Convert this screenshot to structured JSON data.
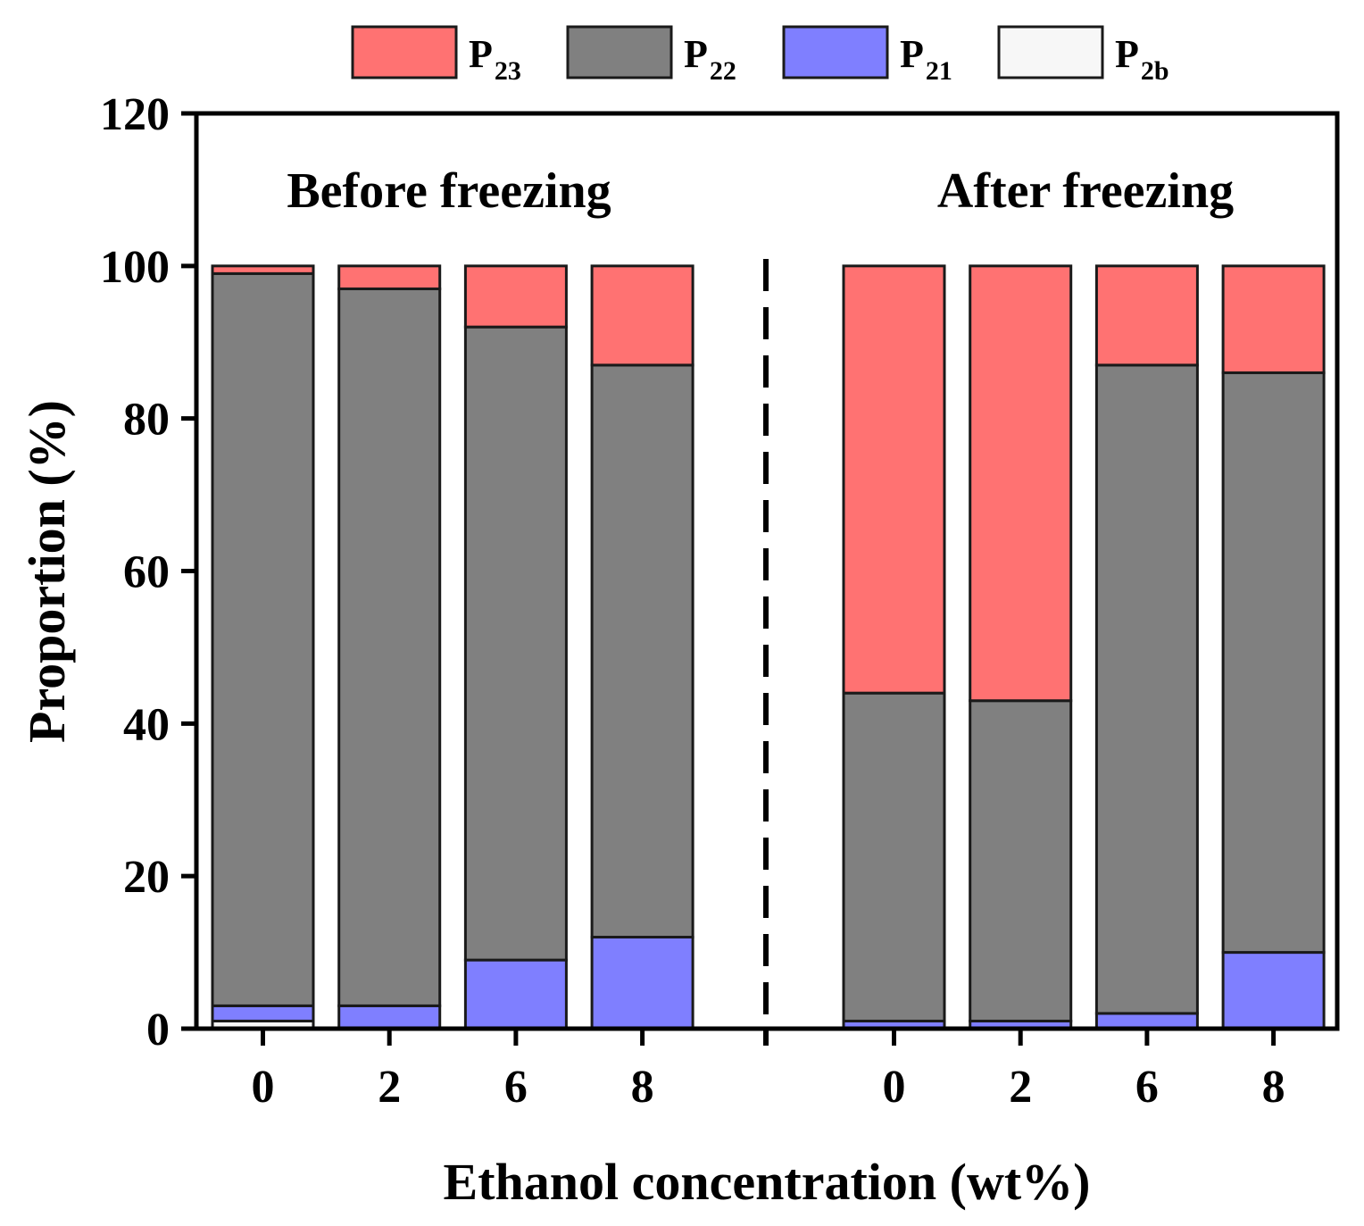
{
  "chart_data": {
    "type": "bar",
    "stacked": true,
    "title": "",
    "xlabel": "Ethanol concentration (wt%)",
    "ylabel": "Proportion (%)",
    "ylim": [
      0,
      120
    ],
    "yticks": [
      "0",
      "20",
      "40",
      "60",
      "80",
      "100",
      "120"
    ],
    "groups": [
      {
        "label": "Before freezing",
        "categories": [
          "0",
          "2",
          "6",
          "8"
        ]
      },
      {
        "label": "After freezing",
        "categories": [
          "0",
          "2",
          "6",
          "8"
        ]
      }
    ],
    "series": [
      {
        "key": "P2b",
        "base": "P",
        "sub": "2b",
        "color": "#f7f7f7",
        "values": [
          1,
          0,
          0,
          0,
          0,
          0,
          0,
          0
        ]
      },
      {
        "key": "P21",
        "base": "P",
        "sub": "21",
        "color": "#7f7fff",
        "values": [
          2,
          3,
          9,
          12,
          1,
          1,
          2,
          10
        ]
      },
      {
        "key": "P22",
        "base": "P",
        "sub": "22",
        "color": "#808080",
        "values": [
          96,
          94,
          83,
          75,
          43,
          42,
          85,
          76
        ]
      },
      {
        "key": "P23",
        "base": "P",
        "sub": "23",
        "color": "#ff7272",
        "values": [
          1,
          3,
          8,
          13,
          56,
          57,
          13,
          14
        ]
      }
    ],
    "legend_order": [
      "P23",
      "P22",
      "P21",
      "P2b"
    ],
    "legend_position": "top"
  }
}
